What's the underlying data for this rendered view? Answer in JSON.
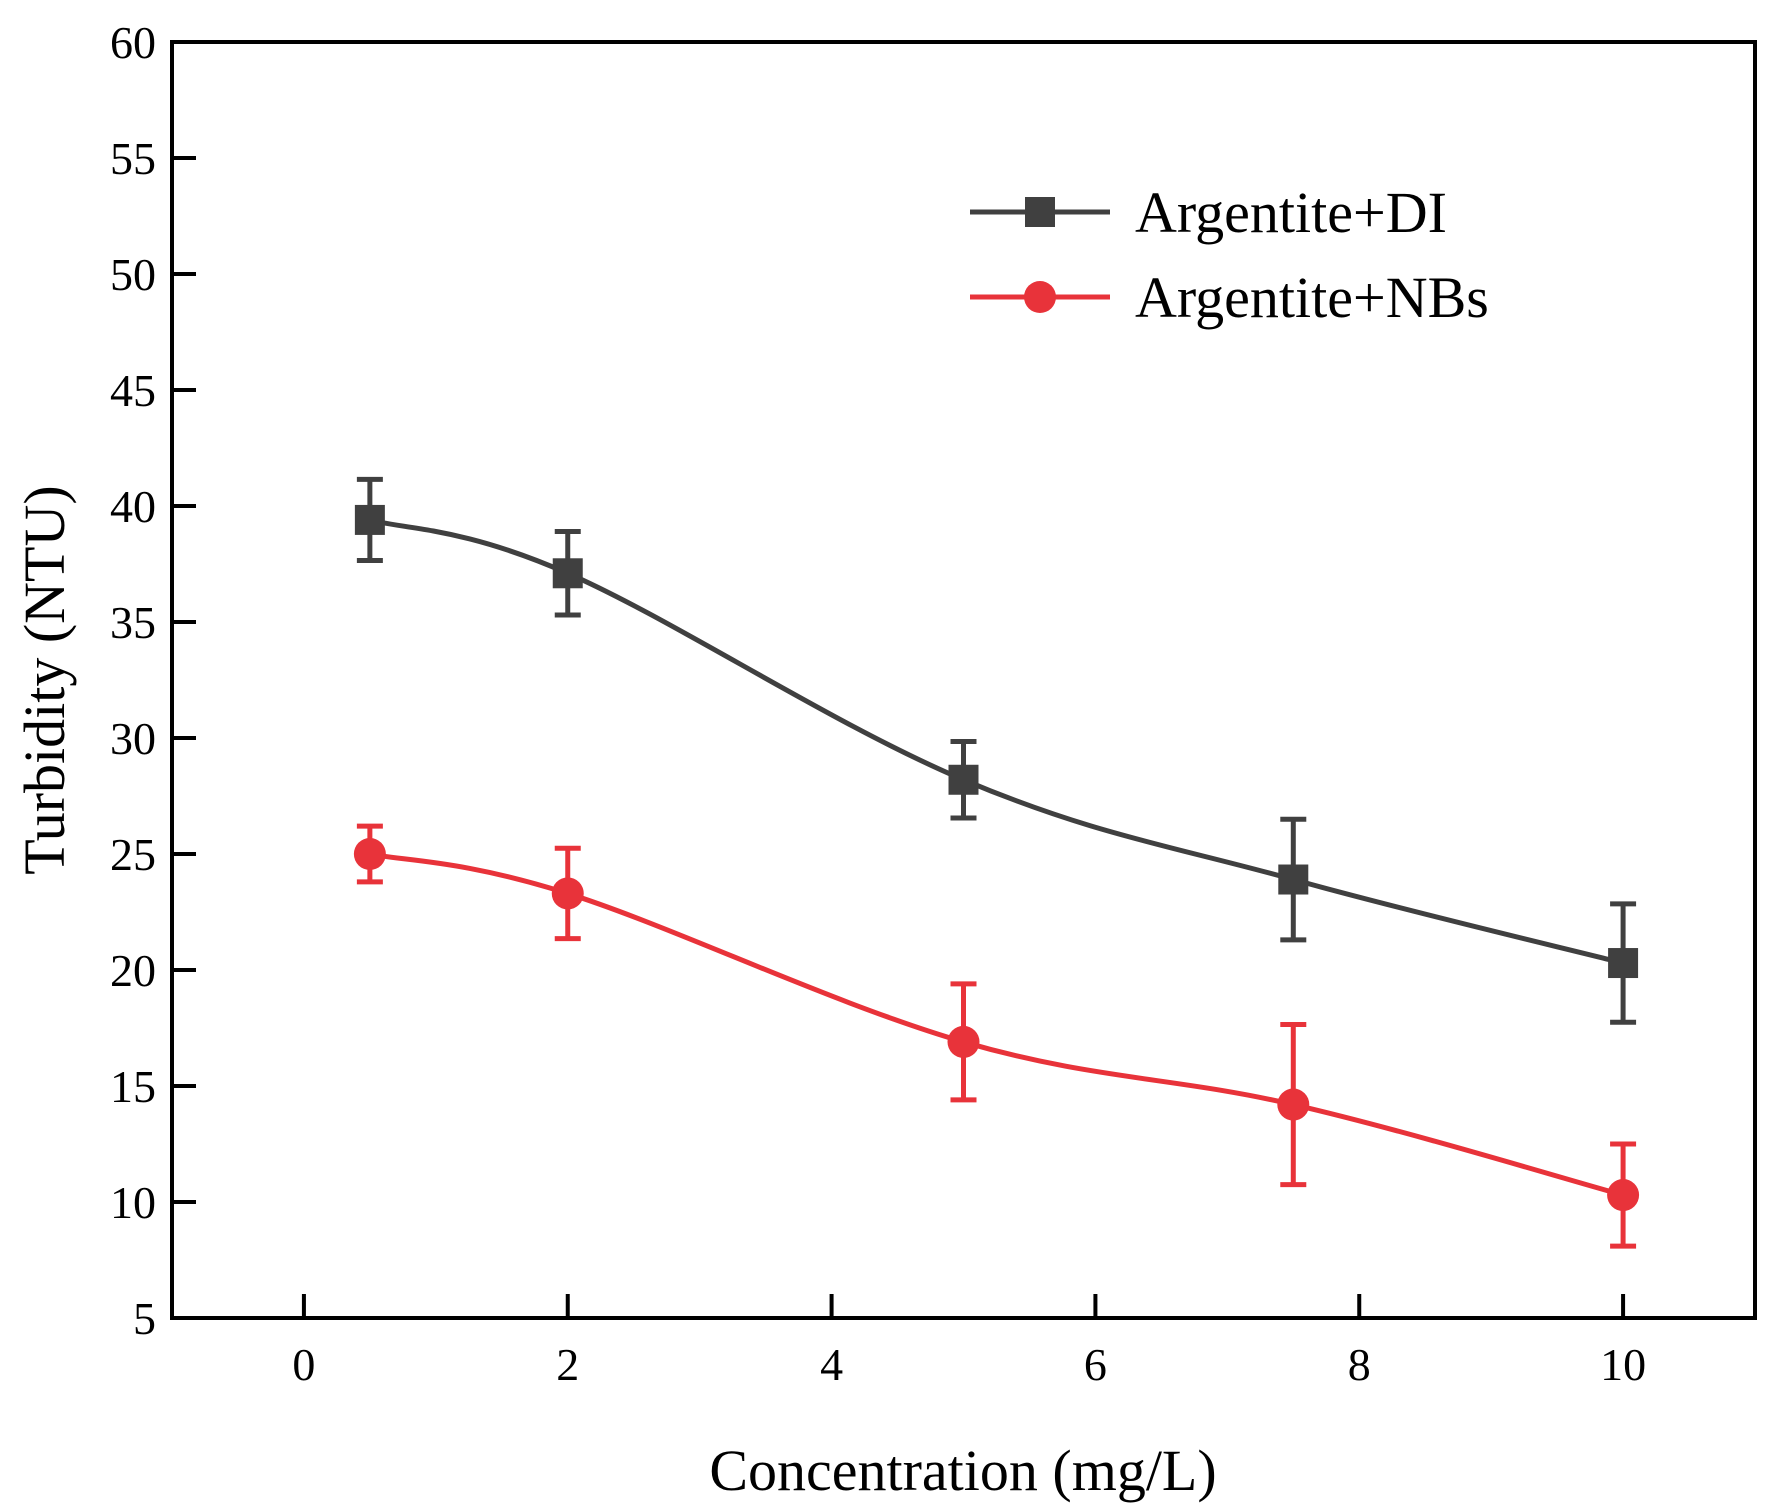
{
  "chart_data": {
    "type": "line",
    "title": "",
    "xlabel": "Concentration (mg/L)",
    "ylabel": "Turbidity (NTU)",
    "xlim": [
      -1,
      11
    ],
    "ylim": [
      5,
      60
    ],
    "xticks": [
      0,
      2,
      4,
      6,
      8,
      10
    ],
    "yticks": [
      5,
      10,
      15,
      20,
      25,
      30,
      35,
      40,
      45,
      50,
      55,
      60
    ],
    "grid": false,
    "legend_position": "top-right",
    "x": [
      0.5,
      2,
      5,
      7.5,
      10
    ],
    "series": [
      {
        "name": "Argentite+DI",
        "color": "#404040",
        "marker": "square",
        "values": [
          39.4,
          37.1,
          28.2,
          23.9,
          20.3
        ],
        "errors": [
          1.75,
          1.8,
          1.65,
          2.6,
          2.55
        ]
      },
      {
        "name": "Argentite+NBs",
        "color": "#e8333a",
        "marker": "circle",
        "values": [
          25.0,
          23.3,
          16.9,
          14.2,
          10.3
        ],
        "errors": [
          1.2,
          1.95,
          2.5,
          3.45,
          2.2
        ]
      }
    ]
  }
}
